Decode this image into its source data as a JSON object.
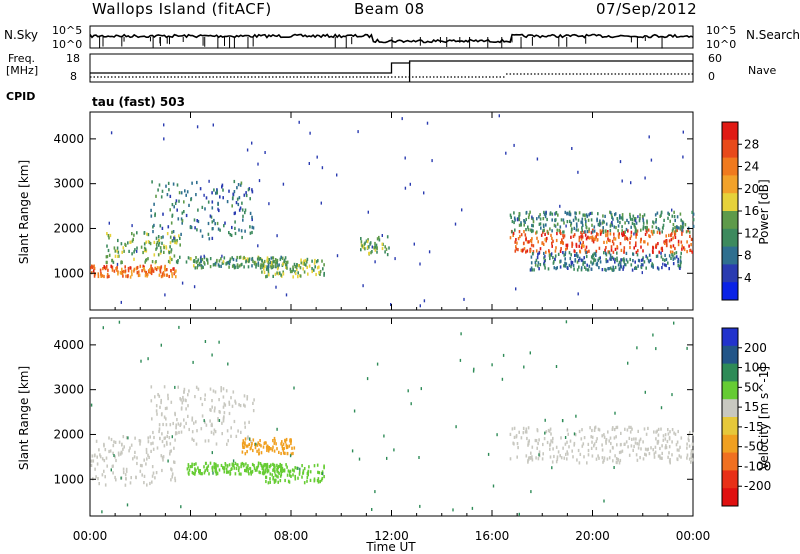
{
  "header": {
    "station": "Wallops Island (fitACF)",
    "beam": "Beam 08",
    "date": "07/Sep/2012"
  },
  "strips": {
    "nsky_label": "N.Sky",
    "nsky_ticks": [
      "10^5",
      "10^0"
    ],
    "nsearch_label": "N.Search",
    "nsearch_ticks": [
      "10^5",
      "10^0"
    ],
    "freq_label": "Freq.",
    "freq_unit": "[MHz]",
    "freq_ticks": [
      "18",
      "8"
    ],
    "nave_label": "Nave",
    "nave_ticks": [
      "60",
      "0"
    ],
    "cpid_label": "CPID",
    "cpid_value": "tau (fast) 503"
  },
  "chart_data": [
    {
      "type": "heatmap",
      "name": "power",
      "ylabel": "Slant Range [km]",
      "xlabel": "Time UT",
      "x_ticks": [
        "00:00",
        "04:00",
        "08:00",
        "12:00",
        "16:00",
        "20:00",
        "00:00"
      ],
      "x_range_hours": [
        0,
        24
      ],
      "y_ticks": [
        1000,
        2000,
        3000,
        4000
      ],
      "ylim": [
        180,
        4600
      ],
      "colorbar": {
        "label": "Power [dB]",
        "ticks": [
          4,
          8,
          12,
          16,
          20,
          24,
          28
        ],
        "range": [
          0,
          32
        ],
        "colors": [
          "#0a22e6",
          "#2a3bb0",
          "#2f6f8f",
          "#3d8a5e",
          "#5e9a4a",
          "#e6d23a",
          "#f2a22a",
          "#f07a1e",
          "#e84a1a",
          "#e01a14"
        ]
      },
      "echo_regions": [
        {
          "t0": 0.0,
          "t1": 3.4,
          "r0": 950,
          "r1": 1200,
          "level": 26
        },
        {
          "t0": 0.6,
          "t1": 3.6,
          "r0": 1250,
          "r1": 1950,
          "level": 14
        },
        {
          "t0": 2.4,
          "t1": 6.5,
          "r0": 1800,
          "r1": 3100,
          "level": 8
        },
        {
          "t0": 3.8,
          "t1": 7.8,
          "r0": 1150,
          "r1": 1400,
          "level": 12
        },
        {
          "t0": 6.8,
          "t1": 9.3,
          "r0": 950,
          "r1": 1350,
          "level": 14
        },
        {
          "t0": 10.7,
          "t1": 11.9,
          "r0": 1450,
          "r1": 1850,
          "level": 14
        },
        {
          "t0": 16.7,
          "t1": 24.0,
          "r0": 1500,
          "r1": 2000,
          "level": 28
        },
        {
          "t0": 16.7,
          "t1": 24.0,
          "r0": 1950,
          "r1": 2400,
          "level": 10
        },
        {
          "t0": 17.5,
          "t1": 23.5,
          "r0": 1100,
          "r1": 1500,
          "level": 8
        }
      ]
    },
    {
      "type": "heatmap",
      "name": "velocity",
      "ylabel": "Slant Range [km]",
      "xlabel": "Time UT",
      "x_ticks": [
        "00:00",
        "04:00",
        "08:00",
        "12:00",
        "16:00",
        "20:00",
        "00:00"
      ],
      "x_range_hours": [
        0,
        24
      ],
      "y_ticks": [
        1000,
        2000,
        3000,
        4000
      ],
      "ylim": [
        180,
        4600
      ],
      "colorbar": {
        "label": "Velocity [m s^-1]",
        "ticks": [
          200,
          100,
          50,
          15,
          -15,
          -50,
          -100,
          -200
        ],
        "colors": [
          "#2233cc",
          "#225588",
          "#2e8b57",
          "#66cc33",
          "#c8c8c0",
          "#e6c83a",
          "#f0a020",
          "#f07020",
          "#e83018",
          "#e01010"
        ]
      },
      "echo_regions": [
        {
          "t0": 0.0,
          "t1": 3.4,
          "r0": 900,
          "r1": 2000,
          "level": 0
        },
        {
          "t0": 2.4,
          "t1": 6.5,
          "r0": 1800,
          "r1": 3100,
          "level": 0
        },
        {
          "t0": 3.8,
          "t1": 7.8,
          "r0": 1150,
          "r1": 1400,
          "level": 30
        },
        {
          "t0": 6.8,
          "t1": 9.3,
          "r0": 950,
          "r1": 1350,
          "level": 30
        },
        {
          "t0": 6.0,
          "t1": 8.2,
          "r0": 1600,
          "r1": 1950,
          "level": -60
        },
        {
          "t0": 16.7,
          "t1": 24.0,
          "r0": 1400,
          "r1": 2200,
          "level": 0
        }
      ]
    }
  ],
  "colors": {
    "echo_grey": "#c8c8c0",
    "axis": "#000000"
  }
}
